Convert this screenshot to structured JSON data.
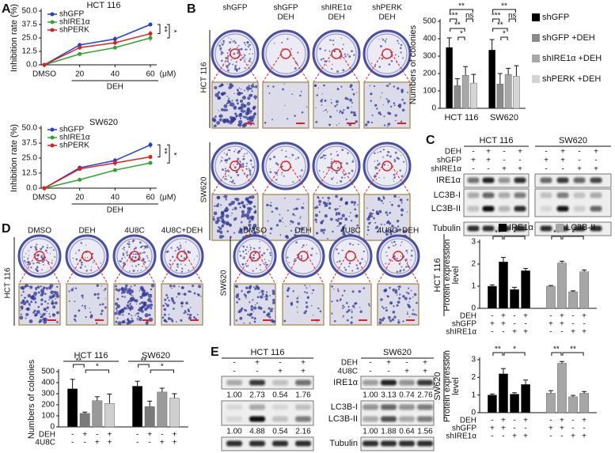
{
  "panel_labels": [
    "A",
    "B",
    "C",
    "D",
    "E"
  ],
  "colony_B": {
    "columns": [
      [
        "shGFP"
      ],
      [
        "shGFP",
        "DEH"
      ],
      [
        "shIRE1α",
        "DEH"
      ],
      [
        "shPERK",
        "DEH"
      ]
    ],
    "rows": [
      "HCT 116",
      "SW620"
    ]
  },
  "colony_D": {
    "groups": [
      "HCT 116",
      "SW620"
    ],
    "columns": [
      "DMSO",
      "DEH",
      "4U8C",
      "4U8C+DEH"
    ]
  },
  "blot_C": {
    "cell_lines": [
      "HCT 116",
      "SW620"
    ],
    "conditions": [
      {
        "label": "DEH",
        "signs": [
          "-",
          "+",
          "-",
          "+"
        ]
      },
      {
        "label": "shGFP",
        "signs": [
          "+",
          "+",
          "-",
          "-"
        ]
      },
      {
        "label": "shIRE1α",
        "signs": [
          "-",
          "-",
          "+",
          "+"
        ]
      }
    ],
    "proteins": [
      "IRE1α",
      "LC3B-I",
      "LC3B-II",
      "Tubulin"
    ]
  },
  "blot_E": {
    "cell_lines": [
      "HCT 116",
      "SW620"
    ],
    "conditions": [
      {
        "label": "DEH",
        "signs": [
          "-",
          "+",
          "-",
          "+"
        ]
      },
      {
        "label": "4U8C",
        "signs": [
          "-",
          "-",
          "+",
          "+"
        ]
      }
    ],
    "proteins": [
      "IRE1α",
      "LC3B-I",
      "LC3B-II",
      "Tubulin"
    ],
    "ratios": [
      [
        [
          "1.00",
          "2.73",
          "0.54",
          "1.76"
        ],
        [
          "1.00",
          "3.13",
          "0.74",
          "2.76"
        ]
      ],
      [
        [
          "1.00",
          "4.88",
          "0.54",
          "2.16"
        ],
        [
          "1.00",
          "1.88",
          "0.64",
          "1.56"
        ]
      ]
    ]
  },
  "chart_data": [
    {
      "type": "line",
      "title": "HCT 116",
      "ylabel": "Inhibition rate (%)",
      "xlabel": "DEH",
      "xunit": "(μM)",
      "categories": [
        "DMSO",
        "20",
        "40",
        "60"
      ],
      "ylim": [
        0,
        50
      ],
      "yticks": [
        {
          "value": 0,
          "label": "0.0"
        },
        12.5,
        {
          "value": 25,
          "label": "25.0"
        },
        37.5,
        {
          "value": 50,
          "label": "50.0"
        }
      ],
      "series": [
        {
          "name": "shGFP",
          "color": "#1f3fd6",
          "values": [
            0,
            18.5,
            24,
            37.5
          ],
          "errors": [
            0.5,
            1.5,
            2.5,
            1.5
          ]
        },
        {
          "name": "shIRE1α",
          "color": "#2ea52e",
          "values": [
            0,
            10,
            16,
            25
          ],
          "errors": [
            0.5,
            1,
            1.5,
            3
          ]
        },
        {
          "name": "shPERK",
          "color": "#e02020",
          "values": [
            0,
            16,
            20.5,
            29
          ],
          "errors": [
            0.5,
            1.5,
            2,
            2.5
          ]
        }
      ],
      "annotations": [
        "**",
        "*"
      ]
    },
    {
      "type": "line",
      "title": "SW620",
      "ylabel": "Inhibition rate (%)",
      "xlabel": "DEH",
      "xunit": "(μM)",
      "categories": [
        "DMSO",
        "20",
        "40",
        "60"
      ],
      "ylim": [
        0,
        50
      ],
      "yticks": [
        {
          "value": 0,
          "label": "0.0"
        },
        12.5,
        {
          "value": 25,
          "label": "25.0"
        },
        37.5,
        {
          "value": 50,
          "label": "50.0"
        }
      ],
      "series": [
        {
          "name": "shGFP",
          "color": "#1f3fd6",
          "values": [
            0,
            17,
            23,
            36
          ],
          "errors": [
            0.5,
            1.5,
            2,
            2.5
          ]
        },
        {
          "name": "shIRE1α",
          "color": "#2ea52e",
          "values": [
            0,
            7,
            15,
            21
          ],
          "errors": [
            0.5,
            1,
            1.5,
            1.5
          ]
        },
        {
          "name": "shPERK",
          "color": "#e02020",
          "values": [
            0,
            16,
            21,
            26
          ],
          "errors": [
            0.5,
            1.5,
            2.5,
            2
          ]
        }
      ],
      "annotations": [
        "**",
        "*"
      ]
    },
    {
      "type": "bar",
      "ylabel": "Numbers of colonies",
      "categories": [
        "HCT 116",
        "SW620"
      ],
      "ylim": [
        0,
        500
      ],
      "yticks": [
        0,
        100,
        200,
        300,
        400,
        500
      ],
      "legend": true,
      "series": [
        {
          "name": "shGFP",
          "color": "#000000",
          "values": [
            350,
            335
          ],
          "errors": [
            55,
            60
          ]
        },
        {
          "name": "shGFP +DEH",
          "color": "#8a8a8a",
          "values": [
            130,
            140
          ],
          "errors": [
            40,
            60
          ]
        },
        {
          "name": "shIRE1α +DEH",
          "color": "#a8a8a8",
          "values": [
            190,
            195
          ],
          "errors": [
            50,
            35
          ]
        },
        {
          "name": "shPERK +DEH",
          "color": "#d4d4d4",
          "values": [
            145,
            185
          ],
          "errors": [
            50,
            60
          ]
        }
      ],
      "annotations": [
        [
          "**",
          "***",
          "ns",
          "**",
          "*"
        ],
        [
          "**",
          "***",
          "ns",
          "**",
          "*"
        ]
      ]
    },
    {
      "type": "bar",
      "ylabel": "Numbers of colonies",
      "categories": [
        "HCT 116",
        "SW620"
      ],
      "ylim": [
        0,
        500
      ],
      "yticks": [
        0,
        100,
        200,
        300,
        400,
        500
      ],
      "legend": false,
      "series": [
        {
          "color": "#000000",
          "values": [
            345,
            368
          ],
          "errors": [
            85,
            45
          ]
        },
        {
          "color": "#7a7a7a",
          "values": [
            122,
            183
          ],
          "errors": [
            12,
            50
          ]
        },
        {
          "color": "#9a9a9a",
          "values": [
            238,
            315
          ],
          "errors": [
            35,
            35
          ]
        },
        {
          "color": "#cfcfcf",
          "values": [
            212,
            260
          ],
          "errors": [
            85,
            40
          ]
        }
      ],
      "conditions": [
        {
          "label": "DEH",
          "signs": [
            "-",
            "+",
            "-",
            "+"
          ]
        },
        {
          "label": "4U8C",
          "signs": [
            "-",
            "-",
            "+",
            "+"
          ]
        }
      ],
      "annotations": [
        [
          "**",
          "*"
        ],
        [
          "**",
          "*"
        ]
      ]
    },
    {
      "type": "bar",
      "title": "HCT 116",
      "ylabel": [
        "Protein expression",
        "level"
      ],
      "ylim": [
        0,
        3
      ],
      "yticks": [
        0,
        1,
        2,
        3
      ],
      "legend": true,
      "series": [
        {
          "name": "IRE1α",
          "color": "#000000",
          "values": [
            1.0,
            2.1,
            0.85,
            1.7
          ],
          "errors": [
            0.06,
            0.2,
            0.1,
            0.1
          ]
        },
        {
          "name": "LC3B-II",
          "color": "#a6a6a6",
          "values": [
            1.0,
            2.05,
            0.75,
            1.65
          ],
          "errors": [
            0.03,
            0.08,
            0.04,
            0.08
          ]
        }
      ],
      "conditions": [
        {
          "label": "DEH",
          "signs": [
            "-",
            "+",
            "-",
            "+"
          ]
        },
        {
          "label": "shGFP",
          "signs": [
            "+",
            "+",
            "-",
            "-"
          ]
        },
        {
          "label": "shIRE1α",
          "signs": [
            "-",
            "-",
            "+",
            "+"
          ]
        }
      ],
      "annotations": [
        [
          "**",
          "*"
        ],
        [
          "**",
          "*"
        ]
      ]
    },
    {
      "type": "bar",
      "title": "SW620",
      "ylabel": [
        "Protein expression",
        "level"
      ],
      "ylim": [
        0,
        3
      ],
      "yticks": [
        0,
        1,
        2,
        3
      ],
      "legend": false,
      "series": [
        {
          "color": "#000000",
          "values": [
            1.0,
            2.2,
            1.05,
            1.6
          ],
          "errors": [
            0.06,
            0.3,
            0.08,
            0.25
          ]
        },
        {
          "color": "#a6a6a6",
          "values": [
            1.1,
            2.8,
            0.9,
            1.1
          ],
          "errors": [
            0.15,
            0.1,
            0.08,
            0.1
          ]
        }
      ],
      "conditions": [
        {
          "label": "DEH",
          "signs": [
            "-",
            "+",
            "-",
            "+"
          ]
        },
        {
          "label": "shGFP",
          "signs": [
            "+",
            "+",
            "-",
            "-"
          ]
        },
        {
          "label": "shIRE1α",
          "signs": [
            "-",
            "-",
            "+",
            "+"
          ]
        }
      ],
      "annotations": [
        [
          "**",
          "*"
        ],
        [
          "**",
          "**"
        ]
      ]
    }
  ]
}
